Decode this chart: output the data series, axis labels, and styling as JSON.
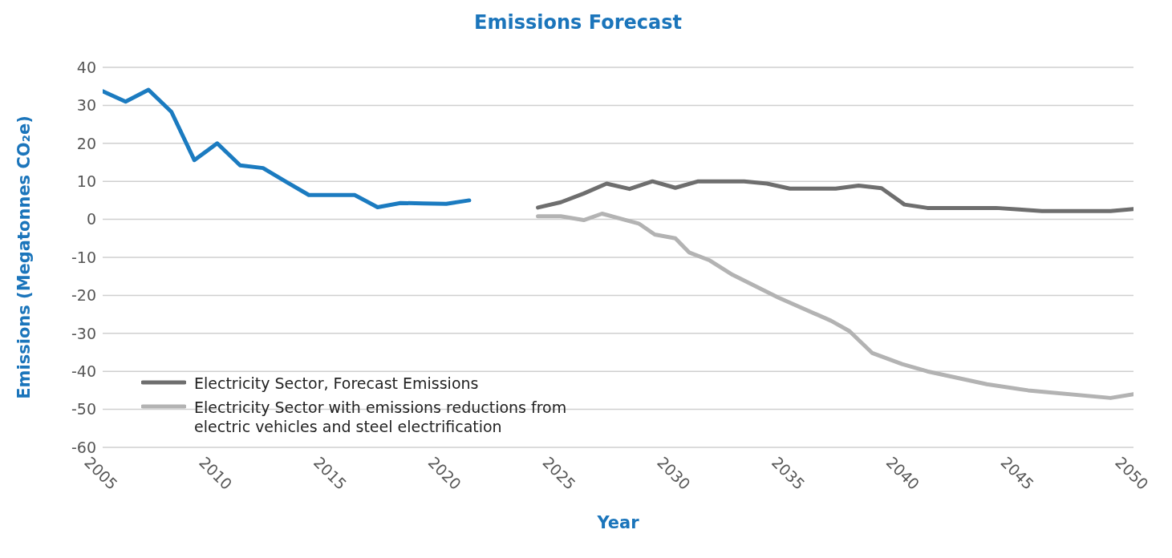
{
  "chart_data": {
    "type": "line",
    "title": "Emissions Forecast",
    "xlabel": "Year",
    "ylabel": "Emissions (Megatonnes CO₂e)",
    "xlim": [
      2005,
      2050
    ],
    "xticks": [
      2005,
      2010,
      2015,
      2020,
      2025,
      2030,
      2035,
      2040,
      2045,
      2050
    ],
    "ylim": [
      -60,
      40
    ],
    "yticks": [
      -60,
      -50,
      -40,
      -30,
      -20,
      -10,
      0,
      10,
      20,
      30,
      40
    ],
    "grid": "y",
    "legend": "bottom left",
    "marker": "none",
    "line_style": "solid",
    "series": [
      {
        "color": "#1b7bc0",
        "x": [
          2005,
          2006,
          2007,
          2008,
          2009,
          2010,
          2011,
          2012,
          2013,
          2014,
          2015,
          2016,
          2017,
          2018,
          2019,
          2020,
          2021
        ],
        "values": [
          33.7,
          31,
          34.1,
          28.3,
          15.6,
          20,
          14.2,
          13.5,
          9.9,
          6.4,
          6.4,
          6.4,
          3.2,
          4.3,
          4.2,
          4.1,
          5
        ]
      },
      {
        "name": "Electricity Sector, Forecast Emissions",
        "color": "#6e6e6e",
        "x": [
          2024,
          2025,
          2026,
          2027,
          2028,
          2029,
          2030,
          2031,
          2032,
          2033,
          2034,
          2035,
          2036,
          2037,
          2038,
          2039,
          2040,
          2041,
          2042,
          2043,
          2044,
          2045,
          2046,
          2047,
          2048,
          2049,
          2050
        ],
        "values": [
          3.1,
          4.5,
          6.8,
          9.4,
          8,
          10,
          8.3,
          10,
          10,
          10,
          9.4,
          8.1,
          8.1,
          8.1,
          8.9,
          8.2,
          3.9,
          3,
          3,
          3,
          3,
          2.6,
          2.2,
          2.2,
          2.2,
          2.2,
          2.7
        ]
      },
      {
        "name": "Electricity Sector with emissions reductions from electric vehicles and steel electrification",
        "color": "#b3b3b3",
        "x": [
          2024,
          2025,
          2026,
          2026.8,
          2028.4,
          2029.1,
          2030,
          2030.6,
          2031.5,
          2032.5,
          2034.5,
          2036.8,
          2037.6,
          2038.6,
          2039.9,
          2041,
          2043.6,
          2045.4,
          2049,
          2050
        ],
        "values": [
          0.8,
          0.8,
          -0.2,
          1.5,
          -1.1,
          -4,
          -5,
          -8.7,
          -10.8,
          -14.6,
          -20.6,
          -26.7,
          -29.4,
          -35.2,
          -38.1,
          -40,
          -43.4,
          -45,
          -47,
          -46
        ]
      }
    ]
  }
}
